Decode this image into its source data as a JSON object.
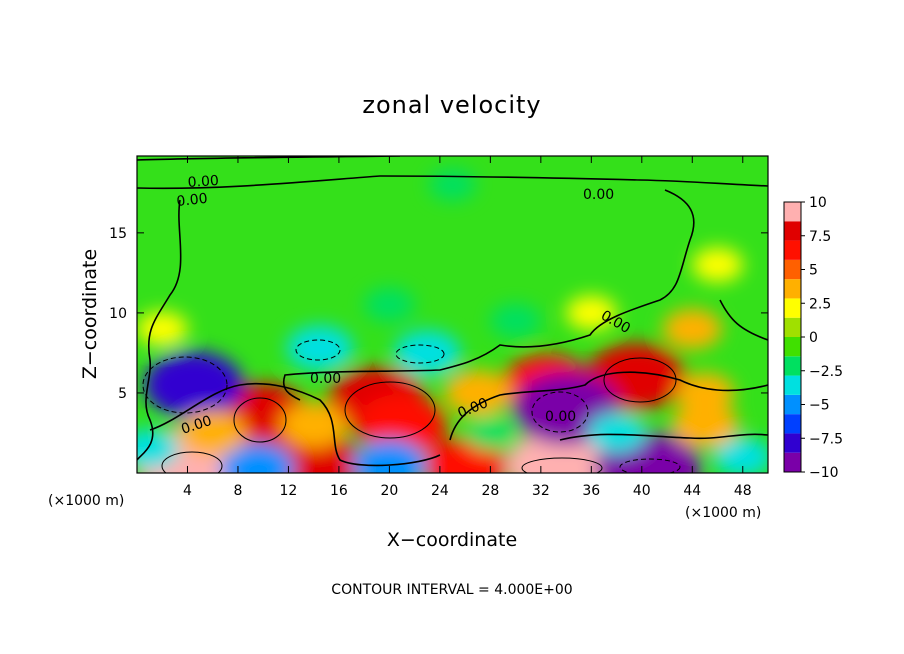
{
  "chart_data": {
    "type": "heatmap",
    "title": "zonal velocity",
    "xlabel": "X−coordinate",
    "ylabel": "Z−coordinate",
    "x_unit_left": "(×1000 m)",
    "x_unit_right": "(×1000 m)",
    "footer": "CONTOUR INTERVAL = 4.000E+00",
    "xlim": [
      0,
      50
    ],
    "ylim": [
      0,
      19.8
    ],
    "x_ticks": [
      4,
      8,
      12,
      16,
      20,
      24,
      28,
      32,
      36,
      40,
      44,
      48
    ],
    "x_tick_labels": [
      "4",
      "8",
      "12",
      "16",
      "20",
      "24",
      "28",
      "32",
      "36",
      "40",
      "44",
      "48"
    ],
    "y_ticks": [
      5,
      10,
      15
    ],
    "y_tick_labels": [
      "5",
      "10",
      "15"
    ],
    "colorbar": {
      "range": [
        -10,
        10
      ],
      "ticks": [
        10,
        7.5,
        5,
        2.5,
        0,
        -2.5,
        -5,
        -7.5,
        -10
      ],
      "tick_labels": [
        "10",
        "7.5",
        "5",
        "2.5",
        "0",
        "−2.5",
        "−5",
        "−7.5",
        "−10"
      ],
      "colors": [
        "#7a00a8",
        "#3000d0",
        "#0040ff",
        "#0090ff",
        "#00e0e0",
        "#00e060",
        "#40e000",
        "#a0e000",
        "#ffff00",
        "#ffb000",
        "#ff6000",
        "#ff1000",
        "#e00000",
        "#ffb0b0"
      ]
    },
    "contour_labels": [
      "0.00",
      "0.00",
      "0.00",
      "0.00",
      "0.00",
      "0.00",
      "0.00",
      "0.00"
    ],
    "blobs": [
      {
        "x": 4.5,
        "z": 0.5,
        "value": 10
      },
      {
        "x": 14,
        "z": 0.5,
        "value": 8
      },
      {
        "x": 33.5,
        "z": 0.5,
        "value": 9
      },
      {
        "x": 26,
        "z": 0.4,
        "value": 6
      },
      {
        "x": 10,
        "z": 3.5,
        "value": 8
      },
      {
        "x": 19,
        "z": 4.5,
        "value": 8
      },
      {
        "x": 21,
        "z": 3,
        "value": 7
      },
      {
        "x": 39.5,
        "z": 6,
        "value": 8
      },
      {
        "x": 32.5,
        "z": 5.5,
        "value": 7
      },
      {
        "x": 4.5,
        "z": 5.5,
        "value": -8
      },
      {
        "x": 34,
        "z": 4,
        "value": -9
      },
      {
        "x": 40.5,
        "z": 0.3,
        "value": -9
      },
      {
        "x": 9.5,
        "z": 0.3,
        "value": -5
      },
      {
        "x": 20,
        "z": 0.5,
        "value": -5
      },
      {
        "x": 14.5,
        "z": 7.8,
        "value": -4
      },
      {
        "x": 23,
        "z": 7.5,
        "value": -4
      },
      {
        "x": 20,
        "z": 10.5,
        "value": -2
      },
      {
        "x": 30,
        "z": 9.5,
        "value": -2
      },
      {
        "x": 1,
        "z": 1.5,
        "value": -3
      },
      {
        "x": 48,
        "z": 1,
        "value": -3
      },
      {
        "x": 38,
        "z": 2.5,
        "value": -3
      },
      {
        "x": 45,
        "z": 5,
        "value": 3
      },
      {
        "x": 27,
        "z": 5,
        "value": 4
      },
      {
        "x": 46,
        "z": 13,
        "value": 2
      },
      {
        "x": 25,
        "z": 18,
        "value": -1.5
      },
      {
        "x": 36,
        "z": 10,
        "value": 2
      },
      {
        "x": 44,
        "z": 9,
        "value": 3
      },
      {
        "x": 2,
        "z": 9,
        "value": 2
      },
      {
        "x": 28,
        "z": 2.5,
        "value": -2
      },
      {
        "x": 14,
        "z": 3,
        "value": 4
      },
      {
        "x": 45,
        "z": 3,
        "value": 4
      },
      {
        "x": 6,
        "z": 2.5,
        "value": 4
      }
    ]
  }
}
